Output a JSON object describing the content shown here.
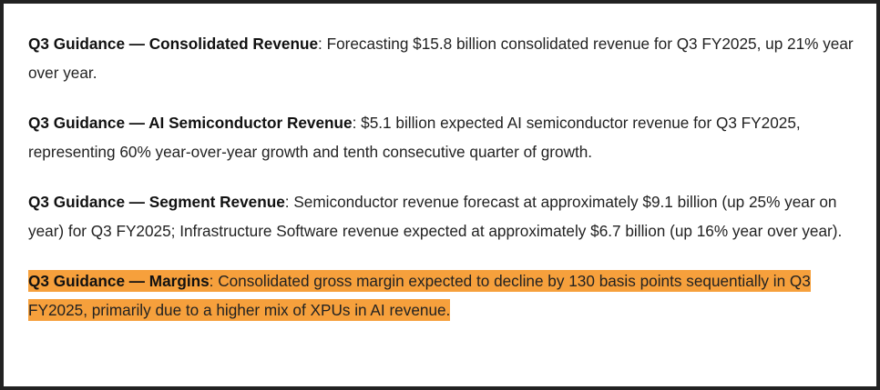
{
  "paragraphs": [
    {
      "label": "Q3 Guidance — Consolidated Revenue",
      "text": ": Forecasting $15.8 billion consolidated revenue for Q3 FY2025, up 21% year over year."
    },
    {
      "label": "Q3 Guidance — AI Semiconductor Revenue",
      "text": ": $5.1 billion expected AI semiconductor revenue for Q3 FY2025, representing 60% year-over-year growth and tenth consecutive quarter of growth."
    },
    {
      "label": "Q3 Guidance — Segment Revenue",
      "text": ": Semiconductor revenue forecast at approximately $9.1 billion (up 25% year on year) for Q3 FY2025; Infrastructure Software revenue expected at approximately $6.7 billion (up 16% year over year)."
    },
    {
      "label": "Q3 Guidance — Margins",
      "text": ": Consolidated gross margin expected to decline by 130 basis points sequentially in Q3 FY2025, primarily due to a higher mix of XPUs in AI revenue."
    }
  ],
  "colors": {
    "highlight": "#f6a03c",
    "text": "#222222",
    "frame": "#222222"
  }
}
